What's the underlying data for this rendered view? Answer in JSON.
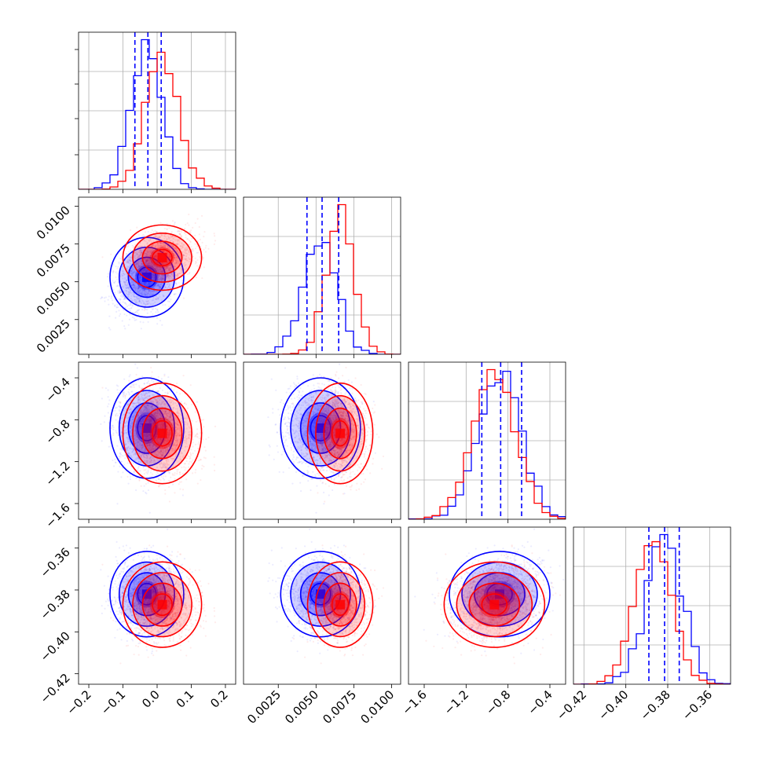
{
  "chart_data": {
    "type": "corner",
    "variables": [
      {
        "key": "p0",
        "range": [
          -0.23,
          0.23
        ],
        "ticks": [
          -0.2,
          -0.1,
          0.0,
          0.1,
          0.2
        ],
        "tick_labels": [
          "−0.2",
          "−0.1",
          "0.0",
          "0.1",
          "0.2"
        ]
      },
      {
        "key": "p1",
        "range": [
          0.0002,
          0.0106
        ],
        "ticks": [
          0.0025,
          0.005,
          0.0075,
          0.01
        ],
        "tick_labels": [
          "0.0025",
          "0.0050",
          "0.0075",
          "0.0100"
        ]
      },
      {
        "key": "p2",
        "range": [
          -1.75,
          -0.25
        ],
        "ticks": [
          -1.6,
          -1.2,
          -0.8,
          -0.4
        ],
        "tick_labels": [
          "−1.6",
          "−1.2",
          "−0.8",
          "−0.4"
        ]
      },
      {
        "key": "p3",
        "range": [
          -0.425,
          -0.35
        ],
        "ticks": [
          -0.42,
          -0.4,
          -0.38,
          -0.36
        ],
        "tick_labels": [
          "−0.42",
          "−0.40",
          "−0.38",
          "−0.36"
        ]
      }
    ],
    "series": [
      {
        "color": "#0000ff",
        "mean": [
          -0.03,
          0.0053,
          -0.88,
          -0.382
        ],
        "sd": [
          0.045,
          0.0011,
          0.2,
          0.0085
        ]
      },
      {
        "color": "#ff0000",
        "mean": [
          0.015,
          0.0066,
          -0.93,
          -0.387
        ],
        "sd": [
          0.048,
          0.0009,
          0.2,
          0.0085
        ]
      }
    ],
    "quantiles": {
      "color": "#0000ff",
      "values": [
        [
          -0.065,
          -0.027,
          0.012
        ],
        [
          0.0044,
          0.0054,
          0.0065
        ],
        [
          -1.05,
          -0.87,
          -0.67
        ],
        [
          -0.389,
          -0.3815,
          -0.3745
        ]
      ]
    },
    "grid": true,
    "legend": "none",
    "xlabel": "",
    "ylabel": "",
    "title": ""
  }
}
